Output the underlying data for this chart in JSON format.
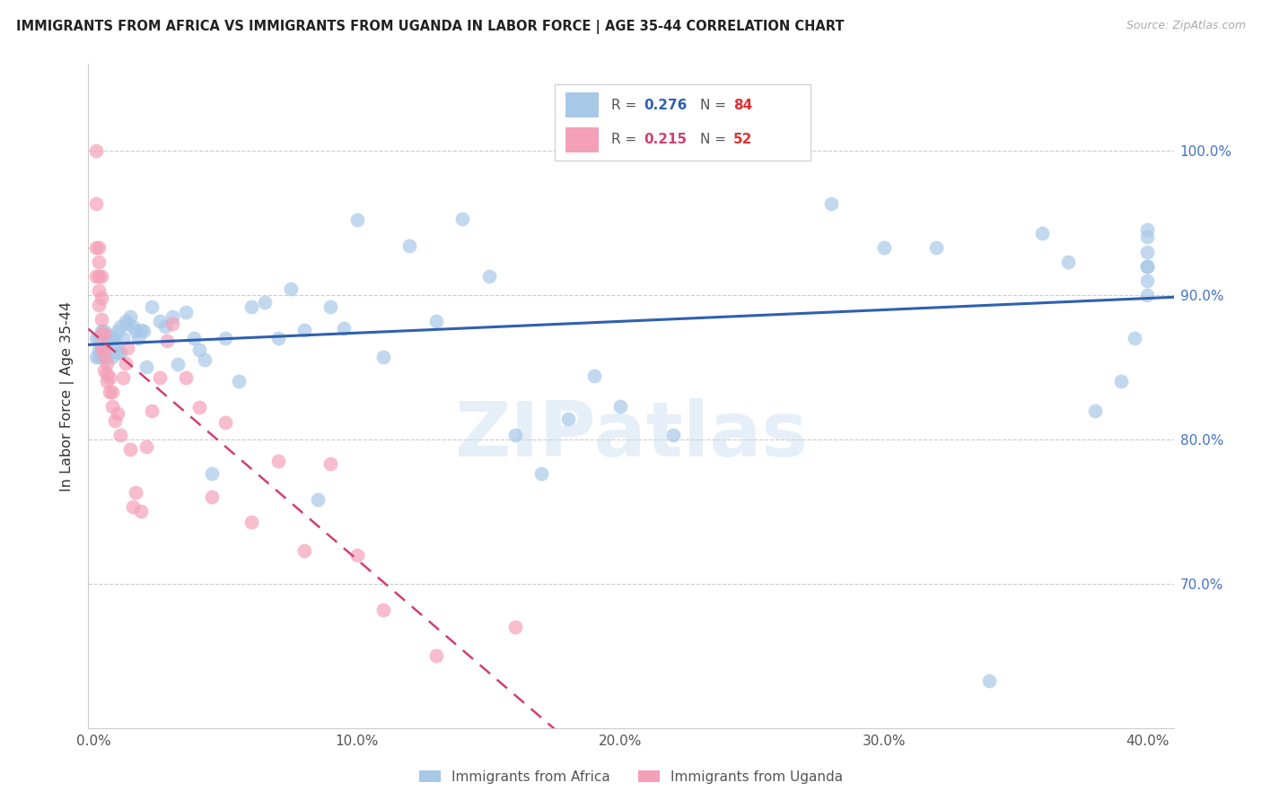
{
  "title": "IMMIGRANTS FROM AFRICA VS IMMIGRANTS FROM UGANDA IN LABOR FORCE | AGE 35-44 CORRELATION CHART",
  "source": "Source: ZipAtlas.com",
  "ylabel": "In Labor Force | Age 35-44",
  "africa_R": "0.276",
  "africa_N": "84",
  "uganda_R": "0.215",
  "uganda_N": "52",
  "africa_color": "#a8c8e8",
  "uganda_color": "#f4a0b8",
  "africa_line_color": "#3060b0",
  "uganda_line_color": "#d04070",
  "xlim": [
    -0.002,
    0.41
  ],
  "ylim": [
    0.6,
    1.06
  ],
  "xlabel_vals": [
    0.0,
    0.1,
    0.2,
    0.3,
    0.4
  ],
  "ylabel_vals": [
    0.7,
    0.8,
    0.9,
    1.0
  ],
  "ylabel_labels": [
    "70.0%",
    "80.0%",
    "90.0%",
    "100.0%"
  ],
  "africa_x": [
    0.001,
    0.001,
    0.002,
    0.002,
    0.002,
    0.003,
    0.003,
    0.003,
    0.004,
    0.004,
    0.004,
    0.005,
    0.005,
    0.005,
    0.006,
    0.006,
    0.007,
    0.007,
    0.008,
    0.008,
    0.009,
    0.009,
    0.01,
    0.01,
    0.011,
    0.012,
    0.013,
    0.014,
    0.015,
    0.016,
    0.017,
    0.018,
    0.019,
    0.02,
    0.022,
    0.025,
    0.027,
    0.03,
    0.032,
    0.035,
    0.038,
    0.04,
    0.042,
    0.045,
    0.05,
    0.055,
    0.06,
    0.065,
    0.07,
    0.075,
    0.08,
    0.085,
    0.09,
    0.095,
    0.1,
    0.11,
    0.12,
    0.13,
    0.14,
    0.15,
    0.16,
    0.17,
    0.18,
    0.19,
    0.2,
    0.22,
    0.24,
    0.26,
    0.28,
    0.3,
    0.32,
    0.34,
    0.36,
    0.37,
    0.38,
    0.39,
    0.395,
    0.4,
    0.4,
    0.4,
    0.4,
    0.4,
    0.4,
    0.4
  ],
  "africa_y": [
    0.857,
    0.87,
    0.857,
    0.862,
    0.87,
    0.857,
    0.862,
    0.875,
    0.857,
    0.862,
    0.875,
    0.857,
    0.862,
    0.87,
    0.86,
    0.872,
    0.857,
    0.87,
    0.862,
    0.87,
    0.86,
    0.875,
    0.86,
    0.878,
    0.87,
    0.882,
    0.88,
    0.885,
    0.878,
    0.875,
    0.87,
    0.876,
    0.875,
    0.85,
    0.892,
    0.882,
    0.878,
    0.885,
    0.852,
    0.888,
    0.87,
    0.862,
    0.855,
    0.776,
    0.87,
    0.84,
    0.892,
    0.895,
    0.87,
    0.904,
    0.876,
    0.758,
    0.892,
    0.877,
    0.952,
    0.857,
    0.934,
    0.882,
    0.953,
    0.913,
    0.803,
    0.776,
    0.814,
    0.844,
    0.823,
    0.803,
    1.0,
    1.0,
    0.963,
    0.933,
    0.933,
    0.633,
    0.943,
    0.923,
    0.82,
    0.84,
    0.87,
    0.92,
    0.9,
    0.93,
    0.91,
    0.94,
    0.92,
    0.945
  ],
  "uganda_x": [
    0.001,
    0.001,
    0.001,
    0.001,
    0.002,
    0.002,
    0.002,
    0.002,
    0.002,
    0.003,
    0.003,
    0.003,
    0.003,
    0.003,
    0.004,
    0.004,
    0.004,
    0.004,
    0.005,
    0.005,
    0.005,
    0.006,
    0.006,
    0.007,
    0.007,
    0.008,
    0.009,
    0.01,
    0.011,
    0.012,
    0.013,
    0.014,
    0.015,
    0.016,
    0.018,
    0.02,
    0.022,
    0.025,
    0.028,
    0.03,
    0.035,
    0.04,
    0.045,
    0.05,
    0.06,
    0.07,
    0.08,
    0.09,
    0.1,
    0.11,
    0.13,
    0.16
  ],
  "uganda_y": [
    1.0,
    0.963,
    0.933,
    0.913,
    0.933,
    0.923,
    0.913,
    0.903,
    0.893,
    0.913,
    0.898,
    0.883,
    0.873,
    0.863,
    0.873,
    0.863,
    0.858,
    0.848,
    0.853,
    0.845,
    0.84,
    0.843,
    0.833,
    0.833,
    0.823,
    0.813,
    0.818,
    0.803,
    0.843,
    0.853,
    0.863,
    0.793,
    0.753,
    0.763,
    0.75,
    0.795,
    0.82,
    0.843,
    0.868,
    0.88,
    0.843,
    0.822,
    0.76,
    0.812,
    0.743,
    0.785,
    0.723,
    0.783,
    0.72,
    0.682,
    0.65,
    0.67
  ],
  "watermark_text": "ZIPatlas",
  "watermark_color": "#c8ddf0",
  "watermark_alpha": 0.45
}
